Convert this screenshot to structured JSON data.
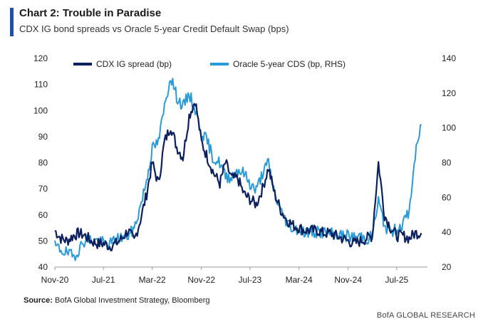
{
  "header": {
    "title": "Chart 2: Trouble in Paradise",
    "subtitle": "CDX IG bond spreads vs Oracle 5-year Credit Default Swap (bps)"
  },
  "footer": {
    "source_label": "Source:",
    "source_text": " BofA Global Investment Strategy, Bloomberg",
    "brand": "BofA GLOBAL RESEARCH"
  },
  "colors": {
    "accent": "#1f4fa8",
    "cdx": "#0c1f5e",
    "oracle": "#2b9bd7"
  },
  "chart_data": {
    "type": "line",
    "title": "",
    "xlabel": "",
    "ylabel": "",
    "x_ticks": [
      "Nov-20",
      "Jul-21",
      "Mar-22",
      "Nov-22",
      "Jul-23",
      "Mar-24",
      "Nov-24",
      "Jul-25"
    ],
    "xlim": [
      "2020-11-01",
      "2025-12-01"
    ],
    "y_left": {
      "ticks": [
        40,
        50,
        60,
        70,
        80,
        90,
        100,
        110,
        120
      ],
      "ylim": [
        40,
        120
      ]
    },
    "y_right": {
      "ticks": [
        20,
        40,
        60,
        80,
        100,
        120,
        140
      ],
      "ylim": [
        20,
        140
      ]
    },
    "legend_position": "top",
    "series": [
      {
        "name": "CDX IG spread (bp)",
        "axis": "left",
        "x": [
          "2020-11-01",
          "2020-12-01",
          "2021-01-01",
          "2021-02-01",
          "2021-03-01",
          "2021-04-01",
          "2021-05-01",
          "2021-06-01",
          "2021-07-01",
          "2021-08-01",
          "2021-09-01",
          "2021-10-01",
          "2021-11-01",
          "2021-12-01",
          "2022-01-01",
          "2022-02-01",
          "2022-03-01",
          "2022-04-01",
          "2022-05-01",
          "2022-06-01",
          "2022-07-01",
          "2022-08-01",
          "2022-09-01",
          "2022-10-01",
          "2022-11-01",
          "2022-12-01",
          "2023-01-01",
          "2023-02-01",
          "2023-03-01",
          "2023-04-01",
          "2023-05-01",
          "2023-06-01",
          "2023-07-01",
          "2023-08-01",
          "2023-09-01",
          "2023-10-01",
          "2023-11-01",
          "2023-12-01",
          "2024-01-01",
          "2024-02-01",
          "2024-03-01",
          "2024-04-01",
          "2024-05-01",
          "2024-06-01",
          "2024-07-01",
          "2024-08-01",
          "2024-09-01",
          "2024-10-01",
          "2024-11-01",
          "2024-12-01",
          "2025-01-01",
          "2025-02-01",
          "2025-03-01",
          "2025-04-01",
          "2025-05-01",
          "2025-06-01",
          "2025-07-01",
          "2025-08-01",
          "2025-09-01",
          "2025-10-01",
          "2025-11-01"
        ],
        "values": [
          54,
          51,
          50,
          52,
          53,
          52,
          50,
          49,
          49,
          48,
          49,
          51,
          54,
          50,
          58,
          68,
          80,
          72,
          88,
          94,
          86,
          82,
          98,
          104,
          88,
          82,
          76,
          72,
          80,
          74,
          74,
          68,
          66,
          64,
          70,
          78,
          68,
          62,
          58,
          56,
          55,
          54,
          54,
          54,
          53,
          53,
          52,
          51,
          50,
          49,
          50,
          51,
          52,
          80,
          60,
          55,
          52,
          52,
          51,
          53,
          53
        ]
      },
      {
        "name": "Oracle 5-year CDS (bp, RHS)",
        "axis": "right",
        "x": [
          "2020-11-01",
          "2020-12-01",
          "2021-01-01",
          "2021-02-01",
          "2021-03-01",
          "2021-04-01",
          "2021-05-01",
          "2021-06-01",
          "2021-07-01",
          "2021-08-01",
          "2021-09-01",
          "2021-10-01",
          "2021-11-01",
          "2021-12-01",
          "2022-01-01",
          "2022-02-01",
          "2022-03-01",
          "2022-04-01",
          "2022-05-01",
          "2022-06-01",
          "2022-07-01",
          "2022-08-01",
          "2022-09-01",
          "2022-10-01",
          "2022-11-01",
          "2022-12-01",
          "2023-01-01",
          "2023-02-01",
          "2023-03-01",
          "2023-04-01",
          "2023-05-01",
          "2023-06-01",
          "2023-07-01",
          "2023-08-01",
          "2023-09-01",
          "2023-10-01",
          "2023-11-01",
          "2023-12-01",
          "2024-01-01",
          "2024-02-01",
          "2024-03-01",
          "2024-04-01",
          "2024-05-01",
          "2024-06-01",
          "2024-07-01",
          "2024-08-01",
          "2024-09-01",
          "2024-10-01",
          "2024-11-01",
          "2024-12-01",
          "2025-01-01",
          "2025-02-01",
          "2025-03-01",
          "2025-04-01",
          "2025-05-01",
          "2025-06-01",
          "2025-07-01",
          "2025-08-01",
          "2025-09-01",
          "2025-10-01",
          "2025-11-01"
        ],
        "values": [
          32,
          30,
          28,
          26,
          30,
          36,
          36,
          35,
          34,
          33,
          36,
          37,
          38,
          42,
          55,
          70,
          88,
          92,
          112,
          130,
          118,
          112,
          120,
          110,
          98,
          92,
          82,
          80,
          72,
          72,
          76,
          74,
          68,
          64,
          74,
          80,
          62,
          52,
          46,
          42,
          42,
          40,
          40,
          40,
          40,
          39,
          39,
          38,
          38,
          37,
          38,
          36,
          38,
          58,
          44,
          40,
          42,
          45,
          52,
          84,
          102
        ]
      }
    ]
  }
}
